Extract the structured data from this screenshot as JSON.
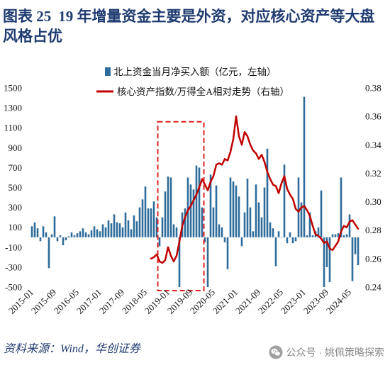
{
  "figure": {
    "label": "图表 25",
    "title": "19 年增量资金主要是外资，对应核心资产等大盘风格占优",
    "source": "资料来源：Wind，华创证券",
    "watermark": "公众号 · 姚佩策略探索"
  },
  "icons": {
    "watermark": "wechat-icon"
  },
  "colors": {
    "title": "#1f3b70",
    "bar": "#2e6d9b",
    "line": "#c00000",
    "highlight": "#e02020"
  },
  "chart_data": {
    "type": "bar",
    "x": [
      "2015-01",
      "2015-02",
      "2015-03",
      "2015-04",
      "2015-05",
      "2015-06",
      "2015-07",
      "2015-08",
      "2015-09",
      "2015-10",
      "2015-11",
      "2015-12",
      "2016-01",
      "2016-02",
      "2016-03",
      "2016-04",
      "2016-05",
      "2016-06",
      "2016-07",
      "2016-08",
      "2016-09",
      "2016-10",
      "2016-11",
      "2016-12",
      "2017-01",
      "2017-02",
      "2017-03",
      "2017-04",
      "2017-05",
      "2017-06",
      "2017-07",
      "2017-08",
      "2017-09",
      "2017-10",
      "2017-11",
      "2017-12",
      "2018-01",
      "2018-02",
      "2018-03",
      "2018-04",
      "2018-05",
      "2018-06",
      "2018-07",
      "2018-08",
      "2018-09",
      "2018-10",
      "2018-11",
      "2018-12",
      "2019-01",
      "2019-02",
      "2019-03",
      "2019-04",
      "2019-05",
      "2019-06",
      "2019-07",
      "2019-08",
      "2019-09",
      "2019-10",
      "2019-11",
      "2019-12",
      "2020-01",
      "2020-02",
      "2020-03",
      "2020-04",
      "2020-05",
      "2020-06",
      "2020-07",
      "2020-08",
      "2020-09",
      "2020-10",
      "2020-11",
      "2020-12",
      "2021-01",
      "2021-02",
      "2021-03",
      "2021-04",
      "2021-05",
      "2021-06",
      "2021-07",
      "2021-08",
      "2021-09",
      "2021-10",
      "2021-11",
      "2021-12",
      "2022-01",
      "2022-02",
      "2022-03",
      "2022-04",
      "2022-05",
      "2022-06",
      "2022-07",
      "2022-08",
      "2022-09",
      "2022-10",
      "2022-11",
      "2022-12",
      "2023-01",
      "2023-02",
      "2023-03",
      "2023-04",
      "2023-05",
      "2023-06",
      "2023-07",
      "2023-08",
      "2023-09",
      "2023-10",
      "2023-11",
      "2023-12",
      "2024-01",
      "2024-02",
      "2024-03",
      "2024-04",
      "2024-05",
      "2024-06",
      "2024-07",
      "2024-08"
    ],
    "x_ticks": [
      "2015-01",
      "2015-09",
      "2016-05",
      "2017-01",
      "2017-09",
      "2018-05",
      "2019-01",
      "2019-09",
      "2020-05",
      "2021-01",
      "2021-09",
      "2022-05",
      "2023-01",
      "2023-09",
      "2024-05"
    ],
    "series": [
      {
        "name": "北上资金当月净买入额（亿元，左轴）",
        "type": "bar",
        "axis": "left",
        "values": [
          110,
          150,
          90,
          -40,
          110,
          50,
          -310,
          30,
          210,
          -40,
          20,
          -80,
          -30,
          10,
          50,
          20,
          40,
          60,
          90,
          50,
          30,
          70,
          110,
          80,
          60,
          130,
          100,
          170,
          140,
          230,
          150,
          140,
          100,
          250,
          170,
          80,
          220,
          160,
          300,
          380,
          510,
          290,
          290,
          360,
          200,
          -90,
          200,
          460,
          610,
          600,
          130,
          100,
          -500,
          250,
          290,
          600,
          530,
          480,
          720,
          700,
          300,
          -50,
          -500,
          630,
          300,
          520,
          130,
          100,
          -50,
          -320,
          600,
          560,
          520,
          410,
          -90,
          250,
          590,
          300,
          60,
          530,
          350,
          200,
          500,
          890,
          150,
          90,
          -290,
          60,
          5,
          730,
          -60,
          50,
          -60,
          -40,
          600,
          350,
          1410,
          20,
          250,
          20,
          60,
          100,
          470,
          -500,
          -300,
          -450,
          30,
          30,
          40,
          600,
          20,
          30,
          230,
          -440,
          -170,
          -280
        ]
      },
      {
        "name": "核心资产指数/万得全A相对走势（右轴）",
        "type": "line",
        "axis": "right",
        "values": [
          null,
          null,
          null,
          null,
          null,
          null,
          null,
          null,
          null,
          null,
          null,
          null,
          null,
          null,
          null,
          null,
          null,
          null,
          null,
          null,
          null,
          null,
          null,
          null,
          null,
          null,
          null,
          null,
          null,
          null,
          null,
          null,
          null,
          null,
          null,
          null,
          null,
          null,
          null,
          null,
          null,
          null,
          0.26,
          0.261,
          0.263,
          0.258,
          0.257,
          0.259,
          0.268,
          0.262,
          0.258,
          0.262,
          0.272,
          0.283,
          0.289,
          0.294,
          0.297,
          0.301,
          0.305,
          0.31,
          0.316,
          0.312,
          0.308,
          0.314,
          0.318,
          0.326,
          0.327,
          0.326,
          0.33,
          0.329,
          0.335,
          0.344,
          0.36,
          0.346,
          0.34,
          0.349,
          0.346,
          0.34,
          0.336,
          0.334,
          0.33,
          0.333,
          0.328,
          0.321,
          0.316,
          0.312,
          0.311,
          0.306,
          0.313,
          0.318,
          0.309,
          0.305,
          0.302,
          0.295,
          0.293,
          0.296,
          0.297,
          0.294,
          0.29,
          0.283,
          0.277,
          0.276,
          0.274,
          0.271,
          0.272,
          0.267,
          0.266,
          0.269,
          0.272,
          0.279,
          0.283,
          0.282,
          0.286,
          0.287,
          0.284,
          0.281
        ]
      }
    ],
    "y_left": {
      "range": [
        -500,
        1500
      ],
      "ticks": [
        1500,
        1300,
        1100,
        900,
        700,
        500,
        300,
        100,
        -100,
        -300,
        -500
      ]
    },
    "y_right": {
      "range": [
        0.24,
        0.38
      ],
      "ticks": [
        "0.38",
        "0.36",
        "0.34",
        "0.32",
        "0.30",
        "0.28",
        "0.26",
        "0.24"
      ]
    },
    "highlight": {
      "x_from": "2018-10",
      "x_to": "2020-01",
      "y_from": -500,
      "y_to": 1160
    },
    "legend": "top",
    "grid": false
  }
}
